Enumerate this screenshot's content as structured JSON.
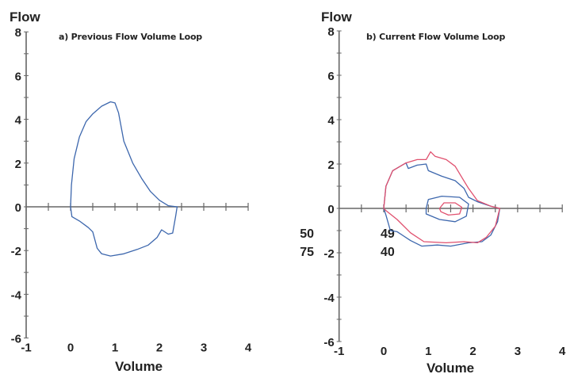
{
  "chart_data": [
    {
      "type": "line",
      "title": "a) Previous Flow Volume Loop",
      "xlabel": "Volume",
      "ylabel": "Flow",
      "xlim": [
        -1,
        4
      ],
      "ylim": [
        -6,
        8
      ],
      "xticks": [
        "-1",
        "0",
        "1",
        "2",
        "3",
        "4"
      ],
      "yticks": [
        "8",
        "6",
        "4",
        "2",
        "0",
        "-2",
        "-4",
        "-6"
      ],
      "grid": false,
      "series": [
        {
          "color": "#3d67ad",
          "points": [
            [
              0,
              0
            ],
            [
              0.02,
              1
            ],
            [
              0.08,
              2.2
            ],
            [
              0.2,
              3.2
            ],
            [
              0.35,
              3.9
            ],
            [
              0.5,
              4.25
            ],
            [
              0.7,
              4.6
            ],
            [
              0.9,
              4.8
            ],
            [
              1.0,
              4.75
            ],
            [
              1.08,
              4.3
            ],
            [
              1.2,
              3.0
            ],
            [
              1.4,
              2.0
            ],
            [
              1.6,
              1.3
            ],
            [
              1.8,
              0.7
            ],
            [
              2.0,
              0.3
            ],
            [
              2.2,
              0.05
            ],
            [
              2.4,
              0
            ],
            [
              2.37,
              -0.4
            ],
            [
              2.3,
              -1.2
            ],
            [
              2.2,
              -1.25
            ],
            [
              2.05,
              -1.05
            ],
            [
              1.95,
              -1.4
            ],
            [
              1.75,
              -1.75
            ],
            [
              1.5,
              -1.95
            ],
            [
              1.2,
              -2.15
            ],
            [
              0.9,
              -2.25
            ],
            [
              0.7,
              -2.15
            ],
            [
              0.6,
              -1.9
            ],
            [
              0.5,
              -1.15
            ],
            [
              0.4,
              -0.95
            ],
            [
              0.2,
              -0.65
            ],
            [
              0.03,
              -0.45
            ],
            [
              0,
              0
            ]
          ]
        }
      ]
    },
    {
      "type": "line",
      "title": "b) Current Flow Volume Loop",
      "xlabel": "Volume",
      "ylabel": "Flow",
      "xlim": [
        -1,
        4
      ],
      "ylim": [
        -6,
        8
      ],
      "xticks": [
        "-1",
        "0",
        "1",
        "2",
        "3",
        "4"
      ],
      "yticks": [
        "8",
        "6",
        "4",
        "2",
        "0",
        "-2",
        "-4",
        "-6"
      ],
      "grid": false,
      "annotations": [
        {
          "label": "50",
          "value": "49"
        },
        {
          "label": "75",
          "value": "40"
        }
      ],
      "series": [
        {
          "color": "#3d67ad",
          "points": [
            [
              0,
              0
            ],
            [
              0.05,
              1
            ],
            [
              0.2,
              1.7
            ],
            [
              0.5,
              2.05
            ],
            [
              0.55,
              1.8
            ],
            [
              0.75,
              1.95
            ],
            [
              0.95,
              2.0
            ],
            [
              1.0,
              1.7
            ],
            [
              1.3,
              1.45
            ],
            [
              1.6,
              1.25
            ],
            [
              1.8,
              0.9
            ],
            [
              1.9,
              0.5
            ],
            [
              2.1,
              0.3
            ],
            [
              2.4,
              0.1
            ],
            [
              2.6,
              0
            ],
            [
              2.55,
              -0.6
            ],
            [
              2.4,
              -1.2
            ],
            [
              2.2,
              -1.5
            ],
            [
              1.9,
              -1.55
            ],
            [
              1.5,
              -1.7
            ],
            [
              1.2,
              -1.65
            ],
            [
              0.85,
              -1.7
            ],
            [
              0.6,
              -1.45
            ],
            [
              0.3,
              -1.05
            ],
            [
              0.15,
              -1.0
            ],
            [
              0.05,
              -0.3
            ],
            [
              0,
              0
            ]
          ]
        },
        {
          "color": "#e0506e",
          "points": [
            [
              0,
              0
            ],
            [
              0.05,
              1
            ],
            [
              0.2,
              1.7
            ],
            [
              0.5,
              2.05
            ],
            [
              0.75,
              2.2
            ],
            [
              0.95,
              2.2
            ],
            [
              1.05,
              2.55
            ],
            [
              1.15,
              2.35
            ],
            [
              1.4,
              2.2
            ],
            [
              1.6,
              1.9
            ],
            [
              1.75,
              1.4
            ],
            [
              1.9,
              0.9
            ],
            [
              2.1,
              0.35
            ],
            [
              2.4,
              0.1
            ],
            [
              2.6,
              0
            ],
            [
              2.5,
              -0.8
            ],
            [
              2.3,
              -1.3
            ],
            [
              2.1,
              -1.55
            ],
            [
              1.8,
              -1.5
            ],
            [
              1.4,
              -1.55
            ],
            [
              0.9,
              -1.5
            ],
            [
              0.6,
              -1.1
            ],
            [
              0.3,
              -0.5
            ],
            [
              0.05,
              -0.1
            ],
            [
              0,
              0
            ]
          ]
        },
        {
          "color": "#3d67ad",
          "points": [
            [
              0.95,
              0
            ],
            [
              1.0,
              0.4
            ],
            [
              1.3,
              0.55
            ],
            [
              1.7,
              0.5
            ],
            [
              1.9,
              0.2
            ],
            [
              1.85,
              -0.35
            ],
            [
              1.6,
              -0.6
            ],
            [
              1.25,
              -0.5
            ],
            [
              0.95,
              -0.25
            ],
            [
              0.95,
              0
            ]
          ]
        },
        {
          "color": "#e0506e",
          "points": [
            [
              1.25,
              0
            ],
            [
              1.35,
              0.25
            ],
            [
              1.6,
              0.25
            ],
            [
              1.75,
              0.05
            ],
            [
              1.7,
              -0.25
            ],
            [
              1.45,
              -0.3
            ],
            [
              1.28,
              -0.15
            ],
            [
              1.25,
              0
            ]
          ]
        }
      ]
    }
  ]
}
